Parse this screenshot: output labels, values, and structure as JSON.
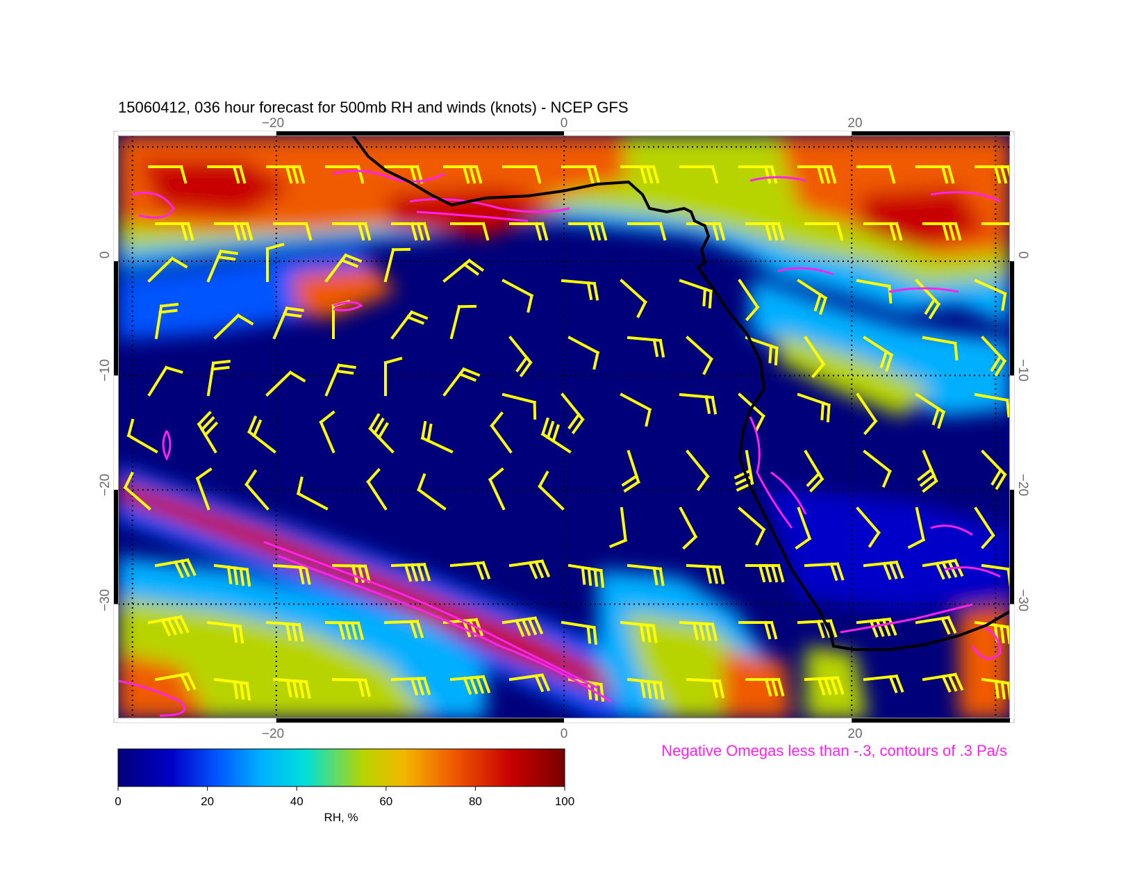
{
  "title": "15060412, 036 hour forecast for 500mb RH and winds (knots) - NCEP GFS",
  "map": {
    "lon_range": [
      -31,
      31
    ],
    "lat_range": [
      -40,
      11
    ],
    "lon_ticks": [
      -20,
      0,
      20
    ],
    "lat_ticks": [
      0,
      -10,
      -20,
      -30
    ],
    "lon_tick_labels": [
      "−20",
      "0",
      "20"
    ],
    "lat_tick_labels": [
      "0",
      "−10",
      "−20",
      "−30"
    ],
    "grid": "dotted"
  },
  "colorbar": {
    "label": "RH, %",
    "min": 0,
    "max": 100,
    "ticks": [
      "0",
      "20",
      "40",
      "60",
      "80",
      "100"
    ],
    "colors": [
      "#00007a",
      "#0000c8",
      "#0055ff",
      "#00b0ff",
      "#00e0d8",
      "#b8d400",
      "#f2b800",
      "#f05a00",
      "#c80000",
      "#780000"
    ]
  },
  "overlays": {
    "wind_barbs": {
      "color": "#ffff00"
    },
    "omega_contours": {
      "color": "#ff22ee",
      "note": "Negative Omegas less than -.3, contours of .3 Pa/s"
    },
    "coastline": {
      "color": "#000000"
    }
  }
}
